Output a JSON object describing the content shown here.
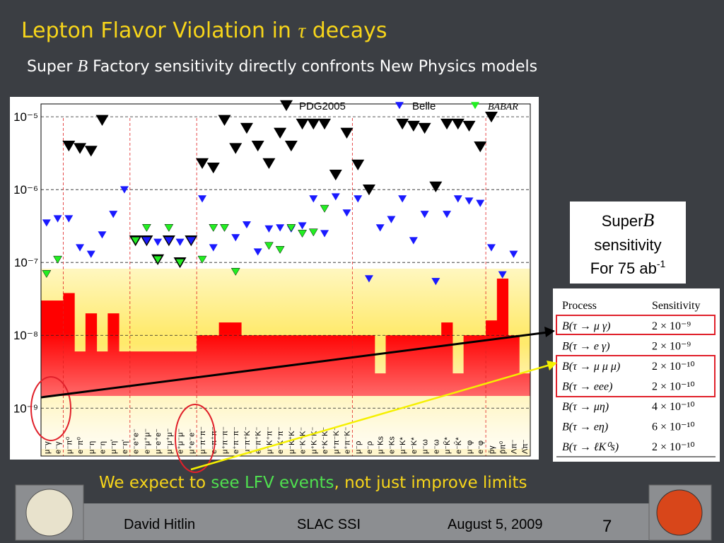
{
  "slide": {
    "title_parts": [
      "Lepton Flavor Violation in ",
      "τ",
      " decays"
    ],
    "subtitle_parts": [
      "Super ",
      "B",
      " Factory sensitivity directly confronts New Physics models"
    ],
    "callout": [
      "Super",
      "B",
      "sensitivity",
      "For 75 ab",
      "-1"
    ],
    "table": {
      "header": [
        "Process",
        "Sensitivity"
      ],
      "rows": [
        [
          "B(τ → μ γ)",
          "2 × 10⁻⁹"
        ],
        [
          "B(τ → e γ)",
          "2 × 10⁻⁹"
        ],
        [
          "B(τ → μ μ μ)",
          "2 × 10⁻¹⁰"
        ],
        [
          "B(τ → eee)",
          "2 × 10⁻¹⁰"
        ],
        [
          "B(τ → μη)",
          "4 × 10⁻¹⁰"
        ],
        [
          "B(τ → eη)",
          "6 × 10⁻¹⁰"
        ],
        [
          "B(τ → ℓK⁰s)",
          "2 × 10⁻¹⁰"
        ]
      ]
    },
    "message_parts": [
      "We expect to ",
      "see LFV events",
      ", not just improve limits"
    ],
    "footer": {
      "author": "David Hitlin",
      "venue": "SLAC SSI",
      "date": "August 5, 2009",
      "page": "7"
    }
  },
  "chart_data": {
    "type": "scatter",
    "log_y": true,
    "grid": true,
    "categories": [
      "μ⁻γ",
      "e⁻γ",
      "μ⁻π⁰",
      "e⁻π⁰",
      "μ⁻η",
      "e⁻η",
      "μ⁻η'",
      "e⁻η'",
      "e⁻e⁺e⁻",
      "e⁻μ⁺μ⁻",
      "μ⁻e⁺e⁻",
      "μ⁻μ⁺μ⁻",
      "e⁺μ⁻μ⁻",
      "μ⁺e⁻e⁻",
      "μ⁻π⁺π⁻",
      "e⁻π⁺π⁻",
      "μ⁺π⁻π⁻",
      "e⁺π⁻π⁻",
      "μ⁻π⁺K⁻",
      "e⁻π⁺K⁻",
      "μ⁻K⁺π⁻",
      "e⁻K⁺π⁻",
      "μ⁻K⁺K⁻",
      "e⁻K⁺K⁻",
      "μ⁺K⁻K⁻",
      "e⁺K⁻K⁻",
      "μ⁺π⁻K⁻",
      "e⁺π⁻K⁻",
      "μ⁻ρ",
      "e⁻ρ",
      "μ⁻Ks",
      "e⁻Ks",
      "μ⁻K*",
      "e⁻K*",
      "μ⁻ω",
      "e⁻ω",
      "μ⁻K̄*",
      "e⁻K̄*",
      "μ⁻φ",
      "e⁻φ",
      "p̄γ",
      "p̄π⁰",
      "Λπ⁻",
      "Λ̄π⁻"
    ],
    "ylim": [
      2.2e-10,
      1.5e-05
    ],
    "yticks": [
      {
        "value": 1e-09,
        "label": "10⁻⁹"
      },
      {
        "value": 1e-08,
        "label": "10⁻⁸"
      },
      {
        "value": 1e-07,
        "label": "10⁻⁷"
      },
      {
        "value": 1e-06,
        "label": "10⁻⁶"
      },
      {
        "value": 1e-05,
        "label": "10⁻⁵"
      }
    ],
    "series": [
      {
        "name": "PDG2005",
        "color": "#000000",
        "values": [
          null,
          null,
          4e-06,
          3.7e-06,
          3.4e-06,
          9e-06,
          null,
          null,
          2e-07,
          2e-07,
          1.1e-07,
          2e-07,
          1e-07,
          2e-07,
          2.3e-06,
          2e-06,
          9e-06,
          3.7e-06,
          7e-06,
          4e-06,
          2.3e-06,
          6e-06,
          4e-06,
          8e-06,
          8e-06,
          8e-06,
          1.6e-06,
          6e-06,
          2.2e-06,
          1e-06,
          null,
          null,
          8e-06,
          7.5e-06,
          7e-06,
          1.1e-06,
          8e-06,
          8e-06,
          7.5e-06,
          3.9e-06,
          1e-05,
          null,
          null,
          null
        ]
      },
      {
        "name": "Belle",
        "color": "#1a1aff",
        "values": [
          3.5e-07,
          4e-07,
          4e-07,
          1.6e-07,
          1.3e-07,
          2.4e-07,
          4.6e-07,
          1e-06,
          2e-07,
          2e-07,
          1.9e-07,
          2e-07,
          1.9e-07,
          2e-07,
          7.5e-07,
          1.6e-07,
          3e-07,
          2.2e-07,
          3.3e-07,
          1.4e-07,
          2.9e-07,
          3e-07,
          2.9e-07,
          3.2e-07,
          7.5e-07,
          2.5e-07,
          8e-07,
          4.8e-07,
          7.5e-07,
          6e-08,
          3e-07,
          3.9e-07,
          7.5e-07,
          2e-07,
          4.6e-07,
          5.5e-08,
          4.6e-07,
          7.5e-07,
          7e-07,
          6.5e-07,
          1.6e-07,
          6.8e-08,
          1.3e-07,
          null
        ]
      },
      {
        "name": "BABAR",
        "color": "#22ee22",
        "values": [
          7e-08,
          1.1e-07,
          null,
          null,
          null,
          null,
          null,
          null,
          2e-07,
          3e-07,
          1.1e-07,
          3e-07,
          1e-07,
          null,
          1.1e-07,
          3e-07,
          3e-07,
          7.5e-08,
          null,
          null,
          1.7e-07,
          1.5e-07,
          3e-07,
          2.5e-07,
          2.6e-07,
          5.5e-07,
          null,
          null,
          null,
          null,
          null,
          null,
          null,
          null,
          null,
          null,
          null,
          null,
          null,
          null,
          null,
          null,
          null,
          null
        ]
      }
    ],
    "band_values": [
      3e-08,
      3e-08,
      3.8e-08,
      6e-09,
      2e-08,
      6e-09,
      2e-08,
      6e-09,
      6e-09,
      6e-09,
      6e-09,
      6e-09,
      6e-09,
      6e-09,
      1e-08,
      1e-08,
      1.5e-08,
      1.5e-08,
      1e-08,
      1e-08,
      1e-08,
      1e-08,
      1e-08,
      1e-08,
      1e-08,
      1e-08,
      1e-08,
      1e-08,
      1e-08,
      1e-08,
      3e-09,
      1e-08,
      1e-08,
      1e-08,
      1e-08,
      1e-08,
      1.5e-08,
      3e-09,
      1e-08,
      1e-08,
      1.6e-08,
      6e-08,
      1e-08,
      3e-09
    ],
    "band_color": "#ff0000"
  }
}
